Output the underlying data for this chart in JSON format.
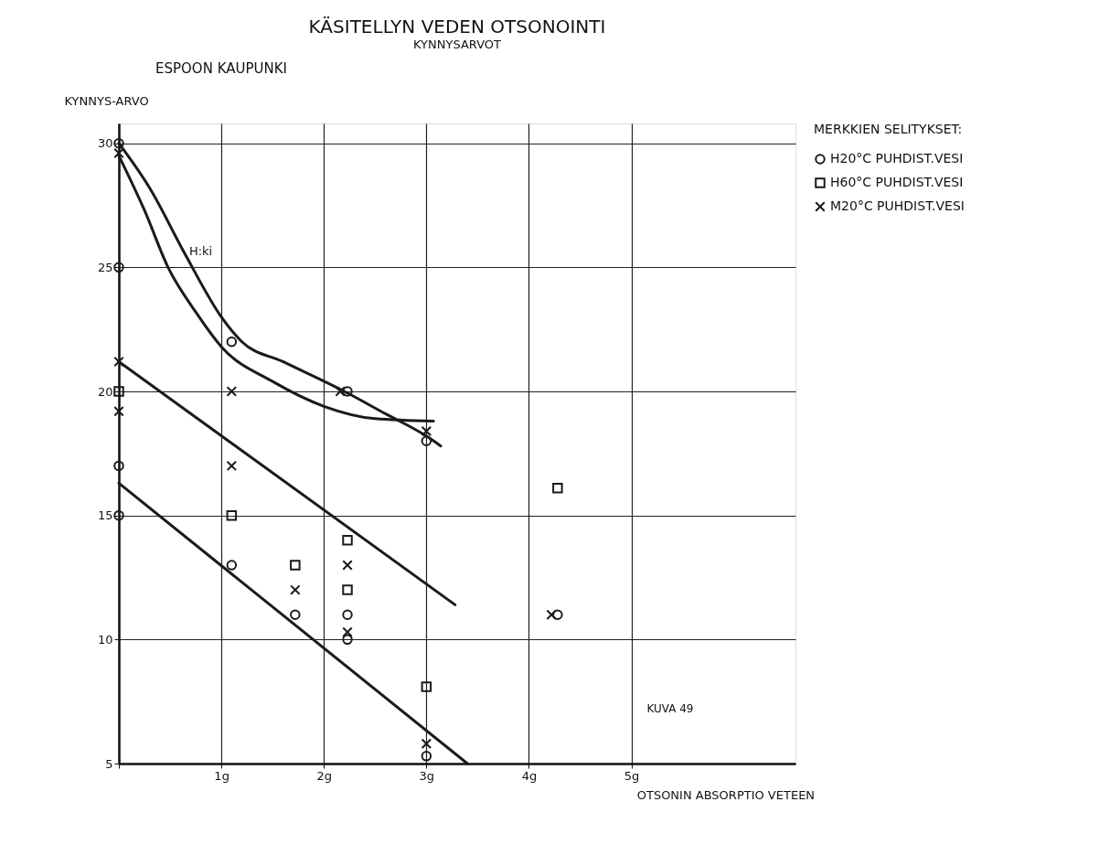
{
  "chart_data": {
    "type": "scatter",
    "title": "KÄSITELLYN VEDEN OTSONOINTI",
    "subtitle": "KYNNYSARVOT",
    "xlabel": "OTSONIN ABSORPTIO VETEEN",
    "ylabel": "KYNNYS-ARVO",
    "legend_title": "MERKKIEN SELITYKSET:",
    "annotations": [
      "ESPOON KAUPUNKI",
      {
        "text": "H:ki",
        "x": 0.65,
        "y": 25.5
      },
      "KUVA 49"
    ],
    "xlim": [
      0,
      6.6
    ],
    "ylim": [
      5,
      30.8
    ],
    "xticks": [
      {
        "value": 0,
        "label": null
      },
      {
        "value": 1,
        "label": "1g"
      },
      {
        "value": 2,
        "label": "2g"
      },
      {
        "value": 3,
        "label": "3g"
      },
      {
        "value": 4,
        "label": "4g"
      },
      {
        "value": 5,
        "label": "5g"
      }
    ],
    "yticks": [
      5,
      10,
      15,
      20,
      25,
      30
    ],
    "grid": true,
    "legend": "right",
    "series": [
      {
        "name": "H20°C  PUHDIST.VESI",
        "marker": "circle",
        "color": "#1a1a1a",
        "x": [
          0,
          0,
          0,
          0,
          1.1,
          1.1,
          1.72,
          2.23,
          2.23,
          2.23,
          3.0,
          3.0,
          4.28
        ],
        "values": [
          30,
          25,
          17,
          15,
          22,
          13,
          11,
          20,
          11,
          10,
          18,
          5.3,
          11
        ]
      },
      {
        "name": "H60°C  PUHDIST.VESI",
        "marker": "square",
        "color": "#1a1a1a",
        "x": [
          0,
          1.1,
          1.72,
          2.23,
          2.23,
          3.0,
          4.28
        ],
        "values": [
          20,
          15,
          13,
          14,
          12,
          8.1,
          16.1
        ]
      },
      {
        "name": "M20°C  PUHDIST.VESI",
        "marker": "cross",
        "color": "#1a1a1a",
        "x": [
          0,
          0,
          0,
          1.1,
          1.1,
          1.72,
          2.16,
          2.23,
          2.23,
          3.0,
          3.0,
          4.22
        ],
        "values": [
          29.6,
          21.2,
          19.2,
          20,
          17,
          12,
          20,
          13,
          10.3,
          18.4,
          5.8,
          11
        ]
      },
      {
        "type": "line",
        "color": "#1a1a1a",
        "x": [
          0,
          0.3,
          0.65,
          1.0,
          1.2,
          1.6,
          2.2,
          2.6,
          3.0,
          3.14
        ],
        "values": [
          30,
          28.2,
          25.5,
          23.0,
          22.0,
          21.2,
          20.0,
          19.1,
          18.2,
          17.8
        ]
      },
      {
        "type": "line",
        "color": "#1a1a1a",
        "x": [
          0,
          0.25,
          0.48,
          0.75,
          1.0,
          1.5,
          2.0,
          2.5,
          3.07
        ],
        "values": [
          29.5,
          27.3,
          25,
          23.2,
          21.8,
          20.4,
          19.4,
          18.9,
          18.8
        ]
      },
      {
        "type": "line",
        "color": "#1a1a1a",
        "x": [
          0,
          3.28
        ],
        "values": [
          21.2,
          11.4
        ]
      },
      {
        "type": "line",
        "color": "#1a1a1a",
        "x": [
          0,
          3.4
        ],
        "values": [
          16.3,
          5
        ]
      }
    ]
  }
}
